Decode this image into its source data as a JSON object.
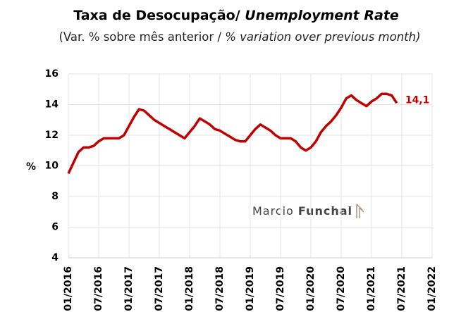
{
  "chart_data": {
    "type": "line",
    "title": {
      "bold": "Taxa de Desocupação/",
      "italic": "Unemployment Rate"
    },
    "subtitle": {
      "plain": "(Var. % sobre mês anterior /",
      "italic": "% variation over previous month)"
    },
    "y_label": "%",
    "x": [
      "01/2016",
      "02/2016",
      "03/2016",
      "04/2016",
      "05/2016",
      "06/2016",
      "07/2016",
      "08/2016",
      "09/2016",
      "10/2016",
      "11/2016",
      "12/2016",
      "01/2017",
      "02/2017",
      "03/2017",
      "04/2017",
      "05/2017",
      "06/2017",
      "07/2017",
      "08/2017",
      "09/2017",
      "10/2017",
      "11/2017",
      "12/2017",
      "01/2018",
      "02/2018",
      "03/2018",
      "04/2018",
      "05/2018",
      "06/2018",
      "07/2018",
      "08/2018",
      "09/2018",
      "10/2018",
      "11/2018",
      "12/2018",
      "01/2019",
      "02/2019",
      "03/2019",
      "04/2019",
      "05/2019",
      "06/2019",
      "07/2019",
      "08/2019",
      "09/2019",
      "10/2019",
      "11/2019",
      "12/2019",
      "01/2020",
      "02/2020",
      "03/2020",
      "04/2020",
      "05/2020",
      "06/2020",
      "07/2020",
      "08/2020",
      "09/2020",
      "10/2020",
      "11/2020",
      "12/2020",
      "01/2021",
      "02/2021",
      "03/2021",
      "04/2021",
      "05/2021",
      "06/2021"
    ],
    "series": [
      {
        "name": "Taxa de Desocupação",
        "color": "#c00000",
        "values": [
          9.5,
          10.2,
          10.9,
          11.2,
          11.2,
          11.3,
          11.6,
          11.8,
          11.8,
          11.8,
          11.8,
          12.0,
          12.6,
          13.2,
          13.7,
          13.6,
          13.3,
          13.0,
          12.8,
          12.6,
          12.4,
          12.2,
          12.0,
          11.8,
          12.2,
          12.6,
          13.1,
          12.9,
          12.7,
          12.4,
          12.3,
          12.1,
          11.9,
          11.7,
          11.6,
          11.6,
          12.0,
          12.4,
          12.7,
          12.5,
          12.3,
          12.0,
          11.8,
          11.8,
          11.8,
          11.6,
          11.2,
          11.0,
          11.2,
          11.6,
          12.2,
          12.6,
          12.9,
          13.3,
          13.8,
          14.4,
          14.6,
          14.3,
          14.1,
          13.9,
          14.2,
          14.4,
          14.7,
          14.7,
          14.6,
          14.1
        ]
      }
    ],
    "last_value_label": "14,1",
    "xticks": [
      "01/2016",
      "07/2016",
      "01/2017",
      "07/2017",
      "01/2018",
      "07/2018",
      "01/2019",
      "07/2019",
      "01/2020",
      "07/2020",
      "01/2021",
      "07/2021",
      "01/2022"
    ],
    "xlim": [
      "01/2016",
      "01/2022"
    ],
    "ylim": [
      4,
      16
    ],
    "yticks": [
      4,
      6,
      8,
      10,
      12,
      14,
      16
    ],
    "grid": true,
    "watermark": {
      "light": "Marcio",
      "bold": "Funchal"
    }
  }
}
